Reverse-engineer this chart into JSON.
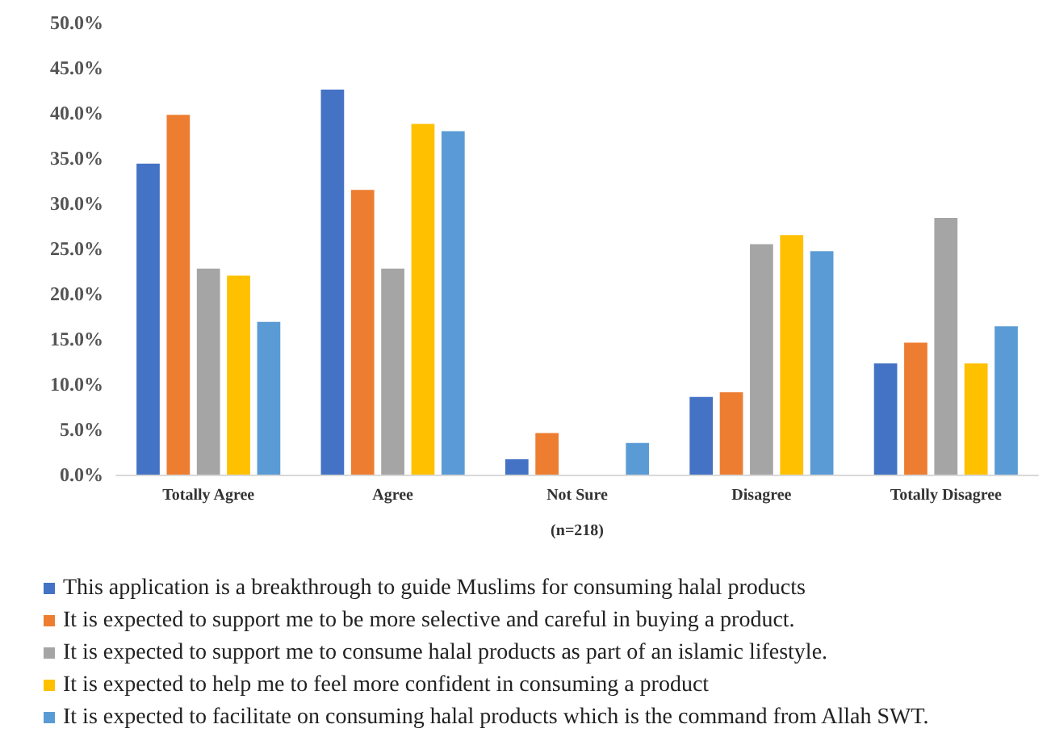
{
  "chart_data": {
    "type": "bar",
    "xlabel": "(n=218)",
    "categories": [
      "Totally Agree",
      "Agree",
      "Not Sure",
      "Disagree",
      "Totally Disagree"
    ],
    "series": [
      {
        "name": "This application is a breakthrough to guide Muslims for consuming halal products",
        "color": "#4472c4",
        "values": [
          34.4,
          42.6,
          1.7,
          8.6,
          12.3
        ]
      },
      {
        "name": "It is expected to support me to be more selective and careful in buying a product.",
        "color": "#ed7d31",
        "values": [
          39.8,
          31.5,
          4.6,
          9.1,
          14.6
        ]
      },
      {
        "name": "It is expected to support me to consume halal products as part of an islamic lifestyle.",
        "color": "#a5a5a5",
        "values": [
          22.8,
          22.8,
          0,
          25.5,
          28.4
        ]
      },
      {
        "name": "It is expected to help me to feel more confident in consuming a product",
        "color": "#ffc000",
        "values": [
          22.0,
          38.8,
          0,
          26.5,
          12.3
        ]
      },
      {
        "name": "It is expected to facilitate on consuming halal products which is the command from Allah SWT.",
        "color": "#5b9bd5",
        "values": [
          16.9,
          38.0,
          3.5,
          24.7,
          16.4
        ]
      }
    ],
    "ylim": [
      0,
      50
    ],
    "yticks": [
      {
        "value": 0,
        "label": "0.0%"
      },
      {
        "value": 5,
        "label": "5.0%"
      },
      {
        "value": 10,
        "label": "10.0%"
      },
      {
        "value": 15,
        "label": "15.0%"
      },
      {
        "value": 20,
        "label": "20.0%"
      },
      {
        "value": 25,
        "label": "25.0%"
      },
      {
        "value": 30,
        "label": "30.0%"
      },
      {
        "value": 35,
        "label": "35.0%"
      },
      {
        "value": 40,
        "label": "40.0%"
      },
      {
        "value": 45,
        "label": "45.0%"
      },
      {
        "value": 50,
        "label": "50.0%"
      }
    ],
    "grid": false,
    "legend": "bottom"
  }
}
